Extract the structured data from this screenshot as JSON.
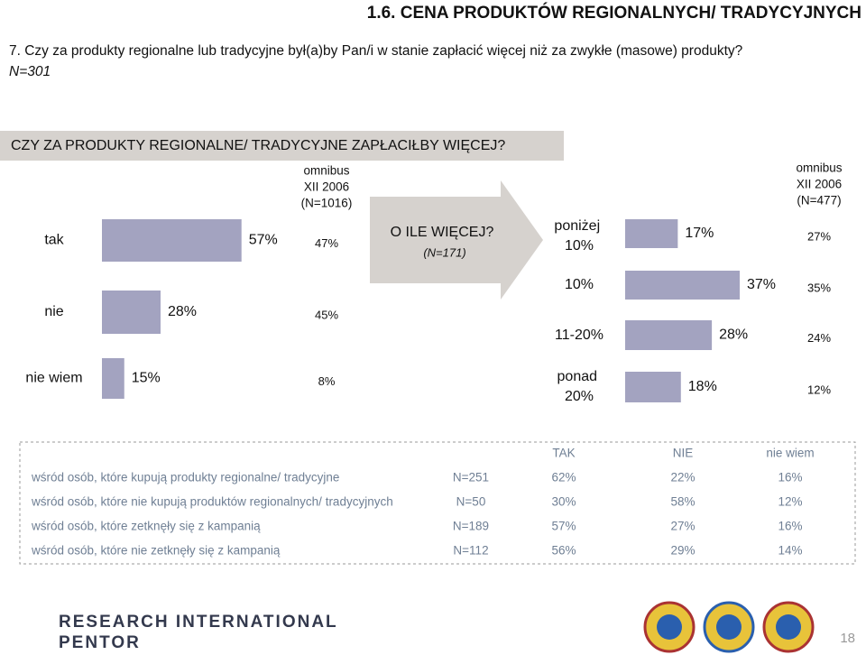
{
  "header": {
    "title": "1.6. CENA PRODUKTÓW REGIONALNYCH/ TRADYCYJNYCH",
    "question": "7. Czy za produkty regionalne lub tradycyjne był(a)by Pan/i w stanie zapłacić więcej niż za zwykłe (masowe) produkty?",
    "sample": "N=301"
  },
  "chart_data": [
    {
      "type": "barh",
      "title": "CZY ZA PRODUKTY REGIONALNE/ TRADYCYJNE ZAPŁACIŁBY WIĘCEJ?",
      "categories": [
        "tak",
        "nie",
        "nie wiem"
      ],
      "values": [
        57,
        28,
        15
      ],
      "value_labels": [
        "57%",
        "28%",
        "15%"
      ],
      "color": "#a3a3c0",
      "xlim": [
        7,
        60
      ],
      "comparison": {
        "label": [
          "omnibus",
          "XII 2006",
          "(N=1016)"
        ],
        "values": [
          47,
          45,
          8
        ],
        "value_labels": [
          "47%",
          "45%",
          "8%"
        ]
      }
    },
    {
      "type": "barh",
      "title": "O ILE WIĘCEJ?",
      "subtitle": "(N=171)",
      "categories": [
        "poniżej 10%",
        "10%",
        "11-20%",
        "ponad 20%"
      ],
      "values": [
        17,
        37,
        28,
        18
      ],
      "value_labels": [
        "17%",
        "37%",
        "28%",
        "18%"
      ],
      "color": "#a3a3c0",
      "xlim": [
        0,
        37
      ],
      "comparison": {
        "label": [
          "omnibus",
          "XII 2006",
          "(N=477)"
        ],
        "values": [
          27,
          35,
          24,
          12
        ],
        "value_labels": [
          "27%",
          "35%",
          "24%",
          "12%"
        ]
      }
    }
  ],
  "table": {
    "columns": [
      "TAK",
      "NIE",
      "nie wiem"
    ],
    "rows": [
      {
        "label": "wśród osób, które kupują produkty regionalne/ tradycyjne",
        "n": "N=251",
        "values": [
          "62%",
          "22%",
          "16%"
        ]
      },
      {
        "label": "wśród osób, które nie kupują produktów regionalnych/ tradycyjnych",
        "n": "N=50",
        "values": [
          "30%",
          "58%",
          "12%"
        ]
      },
      {
        "label": "wśród osób, które zetknęły się z kampanią",
        "n": "N=189",
        "values": [
          "57%",
          "27%",
          "16%"
        ]
      },
      {
        "label": "wśród osób, które nie zetknęły się z kampanią",
        "n": "N=112",
        "values": [
          "56%",
          "29%",
          "14%"
        ]
      }
    ]
  },
  "footer": {
    "brand": [
      "RESEARCH INTERNATIONAL",
      "PENTOR"
    ],
    "page": "18"
  }
}
